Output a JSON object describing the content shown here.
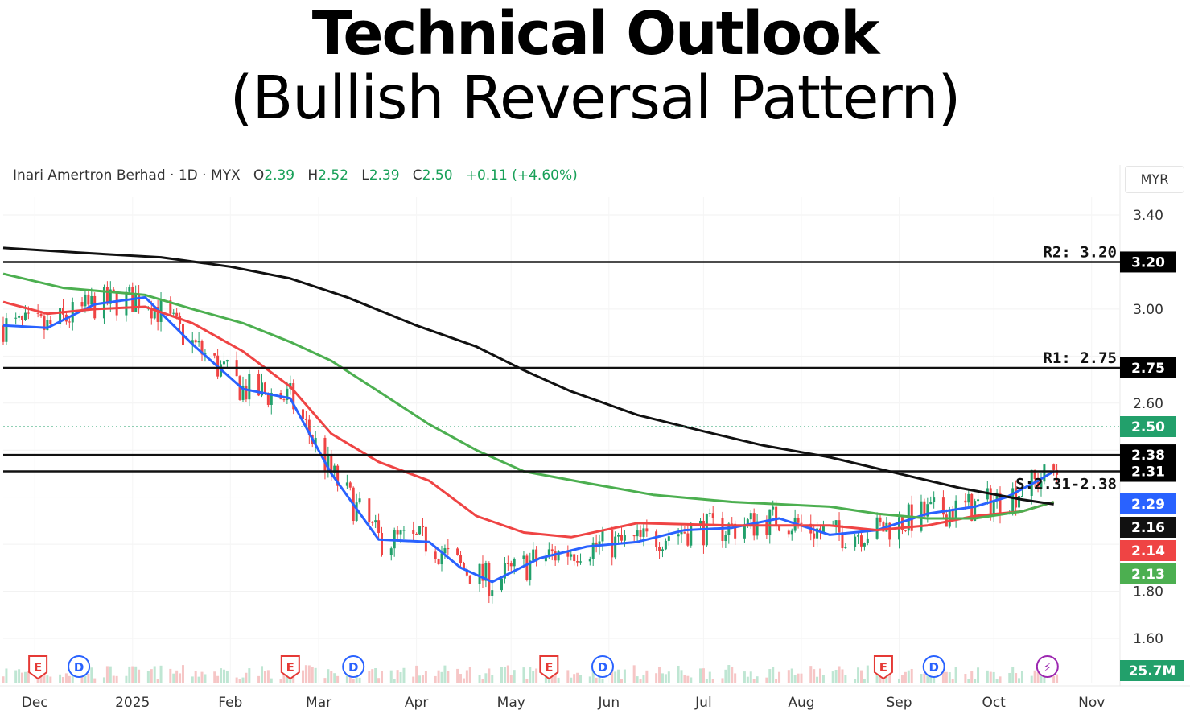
{
  "header": {
    "title": "Technical Outlook",
    "subtitle": "(Bullish Reversal Pattern)"
  },
  "legend": {
    "symbol": "Inari Amertron Berhad · 1D · MYX",
    "o_label": "O",
    "o": "2.39",
    "h_label": "H",
    "h": "2.52",
    "l_label": "L",
    "l": "2.39",
    "c_label": "C",
    "c": "2.50",
    "change": "+0.11 (+4.60%)"
  },
  "currency": "MYR",
  "chart_data": {
    "type": "candlestick",
    "y_range": [
      1.5,
      3.45
    ],
    "y_ticks": [
      "1.60",
      "1.80",
      "2.60",
      "3.00",
      "3.40"
    ],
    "x_range": [
      "2024-11-21",
      "2025-11-10"
    ],
    "x_ticks": [
      {
        "label": "Dec",
        "date": "2024-12-01"
      },
      {
        "label": "2025",
        "date": "2025-01-01"
      },
      {
        "label": "Feb",
        "date": "2025-02-01"
      },
      {
        "label": "Mar",
        "date": "2025-03-01"
      },
      {
        "label": "Apr",
        "date": "2025-04-01"
      },
      {
        "label": "May",
        "date": "2025-05-01"
      },
      {
        "label": "Jun",
        "date": "2025-06-01"
      },
      {
        "label": "Jul",
        "date": "2025-07-01"
      },
      {
        "label": "Aug",
        "date": "2025-08-01"
      },
      {
        "label": "Sep",
        "date": "2025-09-01"
      },
      {
        "label": "Oct",
        "date": "2025-10-01"
      },
      {
        "label": "Nov",
        "date": "2025-11-01"
      }
    ],
    "levels": [
      {
        "value": 3.2,
        "label": "R2: 3.20",
        "tag": "3.20"
      },
      {
        "value": 2.75,
        "label": "R1: 2.75",
        "tag": "2.75"
      },
      {
        "value": 2.38,
        "label": "",
        "tag": "2.38"
      },
      {
        "value": 2.31,
        "label": "S:2.31-2.38",
        "tag": "2.31"
      }
    ],
    "last_price": {
      "value": 2.5,
      "tag": "2.50",
      "color": "#22a06b"
    },
    "moving_averages": [
      {
        "tag": "2.29",
        "color": "#2962ff",
        "points": [
          [
            "2024-11-21",
            2.93
          ],
          [
            "2024-12-05",
            2.92
          ],
          [
            "2024-12-20",
            3.02
          ],
          [
            "2025-01-05",
            3.05
          ],
          [
            "2025-01-20",
            2.85
          ],
          [
            "2025-02-05",
            2.66
          ],
          [
            "2025-02-20",
            2.62
          ],
          [
            "2025-03-05",
            2.3
          ],
          [
            "2025-03-20",
            2.02
          ],
          [
            "2025-04-05",
            2.01
          ],
          [
            "2025-04-15",
            1.9
          ],
          [
            "2025-04-25",
            1.84
          ],
          [
            "2025-05-10",
            1.94
          ],
          [
            "2025-05-25",
            1.99
          ],
          [
            "2025-06-10",
            2.01
          ],
          [
            "2025-06-25",
            2.06
          ],
          [
            "2025-07-10",
            2.07
          ],
          [
            "2025-07-25",
            2.11
          ],
          [
            "2025-08-10",
            2.04
          ],
          [
            "2025-08-25",
            2.06
          ],
          [
            "2025-09-10",
            2.13
          ],
          [
            "2025-09-25",
            2.16
          ],
          [
            "2025-10-05",
            2.2
          ],
          [
            "2025-10-15",
            2.27
          ],
          [
            "2025-10-20",
            2.31
          ]
        ]
      },
      {
        "tag": "2.14",
        "color": "#ef4444",
        "points": [
          [
            "2024-11-21",
            3.03
          ],
          [
            "2024-12-05",
            2.98
          ],
          [
            "2024-12-20",
            3.0
          ],
          [
            "2025-01-05",
            3.01
          ],
          [
            "2025-01-20",
            2.94
          ],
          [
            "2025-02-05",
            2.82
          ],
          [
            "2025-02-20",
            2.67
          ],
          [
            "2025-03-05",
            2.47
          ],
          [
            "2025-03-20",
            2.35
          ],
          [
            "2025-04-05",
            2.27
          ],
          [
            "2025-04-20",
            2.12
          ],
          [
            "2025-05-05",
            2.05
          ],
          [
            "2025-05-20",
            2.03
          ],
          [
            "2025-06-10",
            2.09
          ],
          [
            "2025-07-10",
            2.08
          ],
          [
            "2025-08-10",
            2.08
          ],
          [
            "2025-08-25",
            2.06
          ],
          [
            "2025-09-10",
            2.08
          ],
          [
            "2025-09-25",
            2.12
          ],
          [
            "2025-10-10",
            2.14
          ],
          [
            "2025-10-20",
            2.18
          ]
        ]
      },
      {
        "tag": "2.13",
        "color": "#4caf50",
        "points": [
          [
            "2024-11-21",
            3.15
          ],
          [
            "2024-12-10",
            3.09
          ],
          [
            "2025-01-05",
            3.06
          ],
          [
            "2025-01-20",
            3.0
          ],
          [
            "2025-02-05",
            2.94
          ],
          [
            "2025-02-20",
            2.86
          ],
          [
            "2025-03-05",
            2.78
          ],
          [
            "2025-03-20",
            2.65
          ],
          [
            "2025-04-05",
            2.51
          ],
          [
            "2025-04-20",
            2.4
          ],
          [
            "2025-05-05",
            2.31
          ],
          [
            "2025-05-25",
            2.26
          ],
          [
            "2025-06-15",
            2.21
          ],
          [
            "2025-07-10",
            2.18
          ],
          [
            "2025-08-10",
            2.16
          ],
          [
            "2025-08-25",
            2.13
          ],
          [
            "2025-09-10",
            2.11
          ],
          [
            "2025-09-25",
            2.11
          ],
          [
            "2025-10-10",
            2.14
          ],
          [
            "2025-10-20",
            2.18
          ]
        ]
      },
      {
        "tag": "2.16",
        "color": "#111111",
        "points": [
          [
            "2024-11-21",
            3.26
          ],
          [
            "2024-12-15",
            3.24
          ],
          [
            "2025-01-10",
            3.22
          ],
          [
            "2025-02-01",
            3.18
          ],
          [
            "2025-02-20",
            3.13
          ],
          [
            "2025-03-10",
            3.05
          ],
          [
            "2025-04-01",
            2.93
          ],
          [
            "2025-04-20",
            2.84
          ],
          [
            "2025-05-05",
            2.74
          ],
          [
            "2025-05-20",
            2.65
          ],
          [
            "2025-06-10",
            2.55
          ],
          [
            "2025-07-01",
            2.48
          ],
          [
            "2025-07-20",
            2.42
          ],
          [
            "2025-08-10",
            2.37
          ],
          [
            "2025-09-01",
            2.3
          ],
          [
            "2025-09-20",
            2.24
          ],
          [
            "2025-10-10",
            2.19
          ],
          [
            "2025-10-20",
            2.17
          ]
        ]
      }
    ],
    "volume": {
      "tag": "25.7M",
      "color": "#22a06b"
    },
    "event_markers": [
      {
        "date": "2024-12-02",
        "label": "E",
        "color": "#e53935"
      },
      {
        "date": "2024-12-15",
        "label": "D",
        "color": "#2962ff"
      },
      {
        "date": "2025-02-20",
        "label": "E",
        "color": "#e53935"
      },
      {
        "date": "2025-03-12",
        "label": "D",
        "color": "#2962ff"
      },
      {
        "date": "2025-05-13",
        "label": "E",
        "color": "#e53935"
      },
      {
        "date": "2025-05-30",
        "label": "D",
        "color": "#2962ff"
      },
      {
        "date": "2025-08-27",
        "label": "E",
        "color": "#e53935"
      },
      {
        "date": "2025-09-12",
        "label": "D",
        "color": "#2962ff"
      },
      {
        "date": "2025-10-18",
        "label": "⚡",
        "color": "#9c27b0"
      }
    ]
  }
}
